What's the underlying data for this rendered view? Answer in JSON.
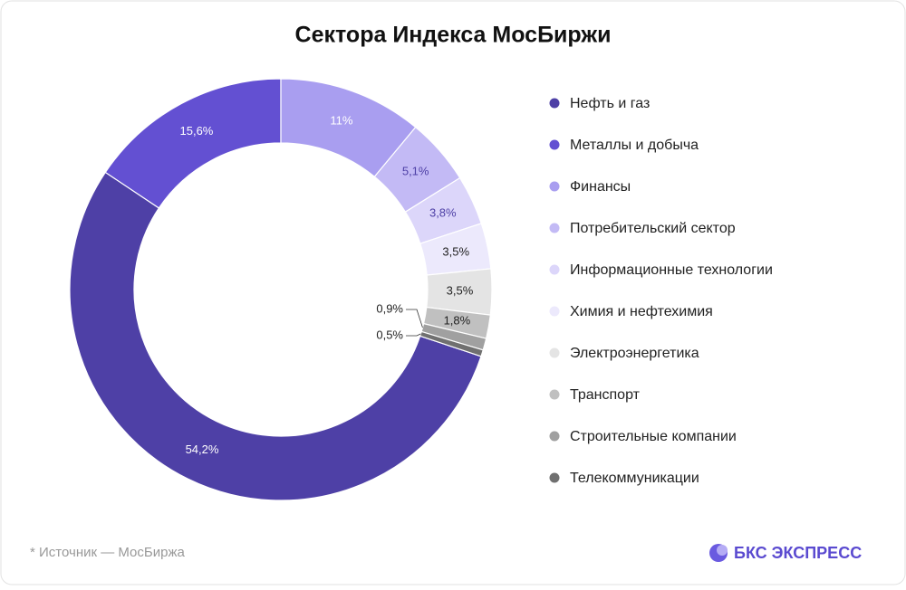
{
  "chart_data": {
    "type": "pie",
    "title": "Сектора Индекса МосБиржи",
    "categories": [
      "Нефть и газ",
      "Металлы и добыча",
      "Финансы",
      "Потребительский сектор",
      "Информационные технологии",
      "Химия и нефтехимия",
      "Электроэнергетика",
      "Транспорт",
      "Строительные компании",
      "Телекоммуникации"
    ],
    "values": [
      54.2,
      15.6,
      11,
      5.1,
      3.8,
      3.5,
      3.5,
      1.8,
      0.9,
      0.5
    ],
    "value_labels": [
      "54,2%",
      "15,6%",
      "11%",
      "5,1%",
      "3,8%",
      "3,5%",
      "3,5%",
      "1,8%",
      "0,9%",
      "0,5%"
    ],
    "colors": [
      "#4e40a6",
      "#6350d2",
      "#a99ef0",
      "#c3baf5",
      "#dcd6fa",
      "#ece9fc",
      "#e4e4e4",
      "#c0c0c0",
      "#a0a0a0",
      "#707070"
    ],
    "legend": "right"
  },
  "source": "* Источник — МосБиржа",
  "brand": "БКС ЭКСПРЕСС"
}
